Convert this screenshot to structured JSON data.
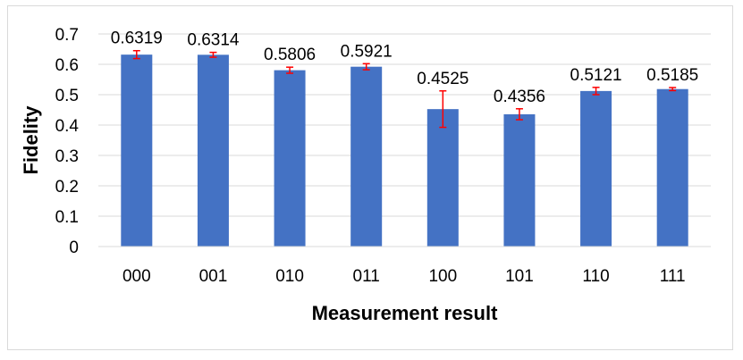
{
  "chart_data": {
    "type": "bar",
    "title": "",
    "xlabel": "Measurement result",
    "ylabel": "Fidelity",
    "categories": [
      "000",
      "001",
      "010",
      "011",
      "100",
      "101",
      "110",
      "111"
    ],
    "values": [
      0.6319,
      0.6314,
      0.5806,
      0.5921,
      0.4525,
      0.4356,
      0.5121,
      0.5185
    ],
    "data_labels": [
      "0.6319",
      "0.6314",
      "0.5806",
      "0.5921",
      "0.4525",
      "0.4356",
      "0.5121",
      "0.5185"
    ],
    "error_bars": [
      0.013,
      0.008,
      0.01,
      0.01,
      0.06,
      0.018,
      0.012,
      0.005
    ],
    "ylim": [
      0,
      0.7
    ],
    "yticks": [
      "0",
      "0.1",
      "0.2",
      "0.3",
      "0.4",
      "0.5",
      "0.6",
      "0.7"
    ],
    "grid": true,
    "legend": "none",
    "bar_color": "#4472c4",
    "error_bar_color": "#ff0000",
    "grid_color": "#d9d9d9"
  }
}
